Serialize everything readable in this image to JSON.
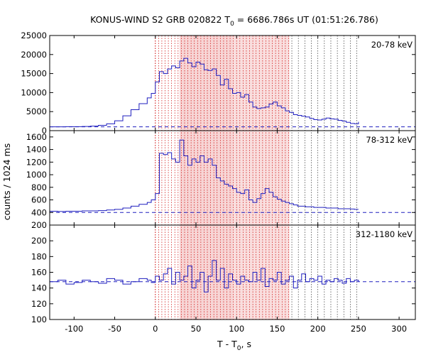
{
  "chart_data": {
    "type": "line",
    "title": "KONUS-WIND S2 GRB 020822 T",
    "title_sub": "0",
    "title_rest": " = 6686.786s UT (01:51:26.786)",
    "xlabel": "T - T",
    "xlabel_sub": "0",
    "xlabel_rest": ", s",
    "ylabel": "counts / 1024 ms",
    "xlim": [
      -130,
      320
    ],
    "xticks": [
      -100,
      -50,
      0,
      50,
      100,
      150,
      200,
      250,
      300
    ],
    "grid": false,
    "colors": {
      "series": "#1f1fbf",
      "background": "#e03030",
      "shade": "#f7d3d3",
      "marker": "#cc0000"
    },
    "shaded_interval": [
      30,
      165
    ],
    "shaded_interval_core": [
      30,
      95
    ],
    "event_lines": [
      0,
      4,
      8,
      12,
      16,
      20,
      24,
      28,
      32,
      36,
      40,
      44,
      48,
      52,
      56,
      60,
      64,
      68,
      72,
      76,
      80,
      84,
      88,
      92,
      96,
      100,
      104,
      108,
      112,
      116,
      120,
      124,
      128,
      132,
      136,
      140,
      144,
      148,
      152,
      156,
      160,
      164,
      168,
      176,
      184,
      192,
      200,
      208,
      216,
      224,
      232,
      240,
      248
    ],
    "panels": [
      {
        "label": "20-78 keV",
        "ylim": [
          0,
          25000
        ],
        "yticks": [
          0,
          5000,
          10000,
          15000,
          20000,
          25000
        ],
        "background_level": 1000,
        "series": [
          {
            "x": [
              -130,
              -120,
              -110,
              -100,
              -90,
              -80,
              -70,
              -60,
              -50,
              -40,
              -30,
              -20,
              -10,
              -5,
              0,
              5,
              10,
              15,
              20,
              25,
              30,
              35,
              40,
              45,
              50,
              55,
              60,
              65,
              70,
              75,
              80,
              85,
              90,
              95,
              100,
              105,
              110,
              115,
              120,
              125,
              130,
              135,
              140,
              145,
              150,
              155,
              160,
              165,
              170,
              175,
              180,
              185,
              190,
              195,
              200,
              205,
              210,
              215,
              220,
              225,
              230,
              235,
              240,
              245,
              250
            ],
            "y": [
              1000,
              1000,
              1050,
              1050,
              1100,
              1200,
              1400,
              1800,
              2600,
              3900,
              5500,
              7100,
              8600,
              9800,
              12800,
              15500,
              15000,
              16200,
              17000,
              16500,
              18300,
              19000,
              17800,
              16800,
              18000,
              17500,
              16000,
              15800,
              16200,
              14500,
              12000,
              13500,
              11000,
              9800,
              10000,
              8800,
              9500,
              7500,
              6200,
              5800,
              6000,
              6200,
              7000,
              7500,
              6500,
              6000,
              5200,
              4800,
              4200,
              4000,
              3800,
              3600,
              3200,
              2900,
              2800,
              3000,
              3300,
              3100,
              3000,
              2700,
              2500,
              2200,
              1900,
              1800,
              2300
            ]
          }
        ]
      },
      {
        "label": "78-312 keV",
        "ylim": [
          200,
          1700
        ],
        "yticks": [
          200,
          400,
          600,
          800,
          1000,
          1200,
          1400,
          1600
        ],
        "background_level": 400,
        "series": [
          {
            "x": [
              -130,
              -120,
              -110,
              -100,
              -90,
              -80,
              -70,
              -60,
              -50,
              -40,
              -30,
              -20,
              -10,
              -5,
              0,
              5,
              10,
              15,
              20,
              25,
              30,
              35,
              40,
              45,
              50,
              55,
              60,
              65,
              70,
              75,
              80,
              85,
              90,
              95,
              100,
              105,
              110,
              115,
              120,
              125,
              130,
              135,
              140,
              145,
              150,
              155,
              160,
              165,
              170,
              175,
              180,
              185,
              190,
              195,
              200,
              205,
              210,
              215,
              220,
              225,
              230,
              235,
              240,
              245,
              250
            ],
            "y": [
              420,
              415,
              420,
              420,
              425,
              425,
              430,
              440,
              450,
              470,
              500,
              530,
              560,
              600,
              700,
              1340,
              1320,
              1350,
              1250,
              1200,
              1550,
              1300,
              1150,
              1250,
              1200,
              1300,
              1200,
              1250,
              1150,
              950,
              900,
              850,
              820,
              780,
              720,
              700,
              760,
              600,
              560,
              620,
              700,
              780,
              720,
              650,
              610,
              580,
              560,
              540,
              520,
              500,
              500,
              490,
              490,
              480,
              480,
              480,
              470,
              470,
              470,
              460,
              460,
              460,
              455,
              450,
              450
            ]
          }
        ]
      },
      {
        "label": "312-1180 keV",
        "ylim": [
          100,
          220
        ],
        "yticks": [
          100,
          120,
          140,
          160,
          180,
          200
        ],
        "background_level": 148,
        "series": [
          {
            "x": [
              -130,
              -120,
              -110,
              -100,
              -90,
              -80,
              -70,
              -60,
              -50,
              -40,
              -30,
              -20,
              -10,
              -5,
              0,
              5,
              10,
              15,
              20,
              25,
              30,
              35,
              40,
              45,
              50,
              55,
              60,
              65,
              70,
              75,
              80,
              85,
              90,
              95,
              100,
              105,
              110,
              115,
              120,
              125,
              130,
              135,
              140,
              145,
              150,
              155,
              160,
              165,
              170,
              175,
              180,
              185,
              190,
              195,
              200,
              205,
              210,
              215,
              220,
              225,
              230,
              235,
              240,
              245,
              250
            ],
            "y": [
              148,
              150,
              145,
              147,
              150,
              148,
              146,
              152,
              150,
              145,
              148,
              152,
              150,
              147,
              155,
              150,
              158,
              165,
              145,
              160,
              150,
              155,
              168,
              140,
              150,
              160,
              135,
              155,
              175,
              150,
              165,
              140,
              158,
              150,
              145,
              155,
              150,
              148,
              160,
              150,
              165,
              142,
              152,
              150,
              160,
              145,
              150,
              155,
              140,
              150,
              158,
              148,
              152,
              150,
              155,
              145,
              150,
              148,
              152,
              150,
              146,
              152,
              148,
              150,
              148
            ]
          }
        ]
      }
    ]
  }
}
